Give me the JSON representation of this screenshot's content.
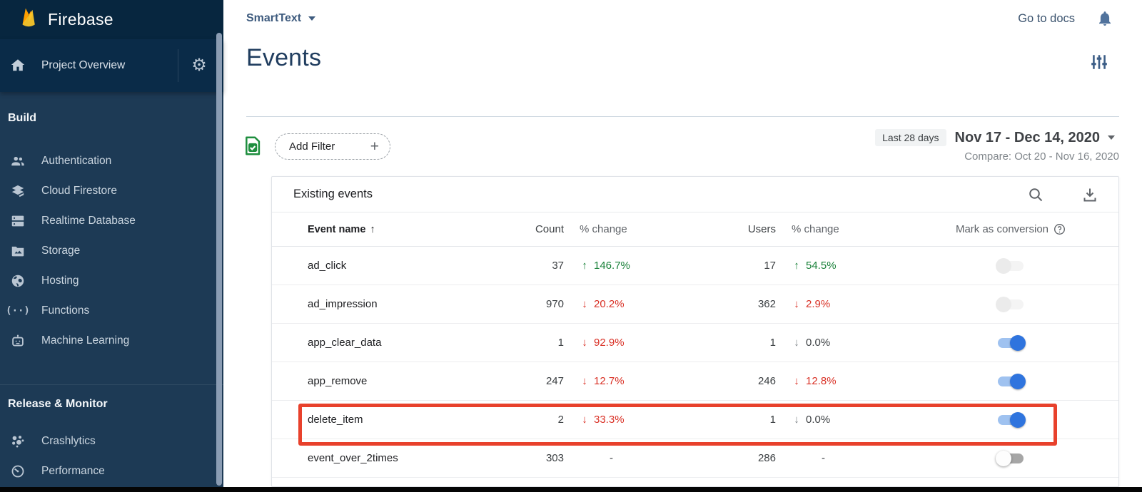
{
  "sidebar": {
    "logo_text": "Firebase",
    "project_overview": {
      "label": "Project Overview",
      "icons": [
        "home-icon",
        "gear-icon"
      ]
    },
    "sections": [
      {
        "header": "Build",
        "items": [
          {
            "icon": "people-icon",
            "label": "Authentication"
          },
          {
            "icon": "firestore-icon",
            "label": "Cloud Firestore"
          },
          {
            "icon": "database-icon",
            "label": "Realtime Database"
          },
          {
            "icon": "storage-icon",
            "label": "Storage"
          },
          {
            "icon": "hosting-icon",
            "label": "Hosting"
          },
          {
            "icon": "functions-icon",
            "label": "Functions"
          },
          {
            "icon": "ml-icon",
            "label": "Machine Learning"
          }
        ]
      },
      {
        "header": "Release & Monitor",
        "items": [
          {
            "icon": "crashlytics-icon",
            "label": "Crashlytics"
          },
          {
            "icon": "performance-icon",
            "label": "Performance"
          }
        ]
      }
    ]
  },
  "topbar": {
    "project_name": "SmartText",
    "go_to_docs": "Go to docs",
    "icons": [
      "bell-icon"
    ]
  },
  "page": {
    "title": "Events",
    "icons": [
      "tune-icon"
    ]
  },
  "filter_bar": {
    "status_icon": "green-doc-check-icon",
    "add_filter_label": "Add Filter",
    "plus_icon": "+",
    "date_range_badge": "Last 28 days",
    "date_range": "Nov 17 - Dec 14, 2020",
    "compare": "Compare: Oct 20 - Nov 16, 2020"
  },
  "table": {
    "title": "Existing events",
    "action_icons": [
      "search-icon",
      "download-icon"
    ],
    "columns": [
      "Event name",
      "Count",
      "% change",
      "Users",
      "% change",
      "Mark as conversion"
    ],
    "sort": {
      "column": "Event name",
      "direction": "asc"
    },
    "help_icon": "help-icon",
    "rows": [
      {
        "name": "ad_click",
        "count": "37",
        "count_change": {
          "dir": "up",
          "value": "146.7%",
          "tone": "green"
        },
        "users": "17",
        "users_change": {
          "dir": "up",
          "value": "54.5%",
          "tone": "green"
        },
        "toggle": "disabled-off",
        "highlight": false
      },
      {
        "name": "ad_impression",
        "count": "970",
        "count_change": {
          "dir": "down",
          "value": "20.2%",
          "tone": "red"
        },
        "users": "362",
        "users_change": {
          "dir": "down",
          "value": "2.9%",
          "tone": "red"
        },
        "toggle": "disabled-off",
        "highlight": false
      },
      {
        "name": "app_clear_data",
        "count": "1",
        "count_change": {
          "dir": "down",
          "value": "92.9%",
          "tone": "red"
        },
        "users": "1",
        "users_change": {
          "dir": "down",
          "value": "0.0%",
          "tone": "gray"
        },
        "toggle": "on",
        "highlight": false
      },
      {
        "name": "app_remove",
        "count": "247",
        "count_change": {
          "dir": "down",
          "value": "12.7%",
          "tone": "red"
        },
        "users": "246",
        "users_change": {
          "dir": "down",
          "value": "12.8%",
          "tone": "red"
        },
        "toggle": "on",
        "highlight": false
      },
      {
        "name": "delete_item",
        "count": "2",
        "count_change": {
          "dir": "down",
          "value": "33.3%",
          "tone": "red"
        },
        "users": "1",
        "users_change": {
          "dir": "down",
          "value": "0.0%",
          "tone": "gray"
        },
        "toggle": "on",
        "highlight": true
      },
      {
        "name": "event_over_2times",
        "count": "303",
        "count_change": {
          "dir": "none",
          "value": "-",
          "tone": "gray"
        },
        "users": "286",
        "users_change": {
          "dir": "none",
          "value": "-",
          "tone": "gray"
        },
        "toggle": "off",
        "highlight": false
      }
    ]
  },
  "colors": {
    "positive_green": "#188038",
    "negative_red": "#D93025",
    "neutral_gray": "#80868B",
    "toggle_on_blue": "#2F74DE",
    "highlight_red": "#E8412C",
    "sidebar_navy": "#1D3A55"
  }
}
